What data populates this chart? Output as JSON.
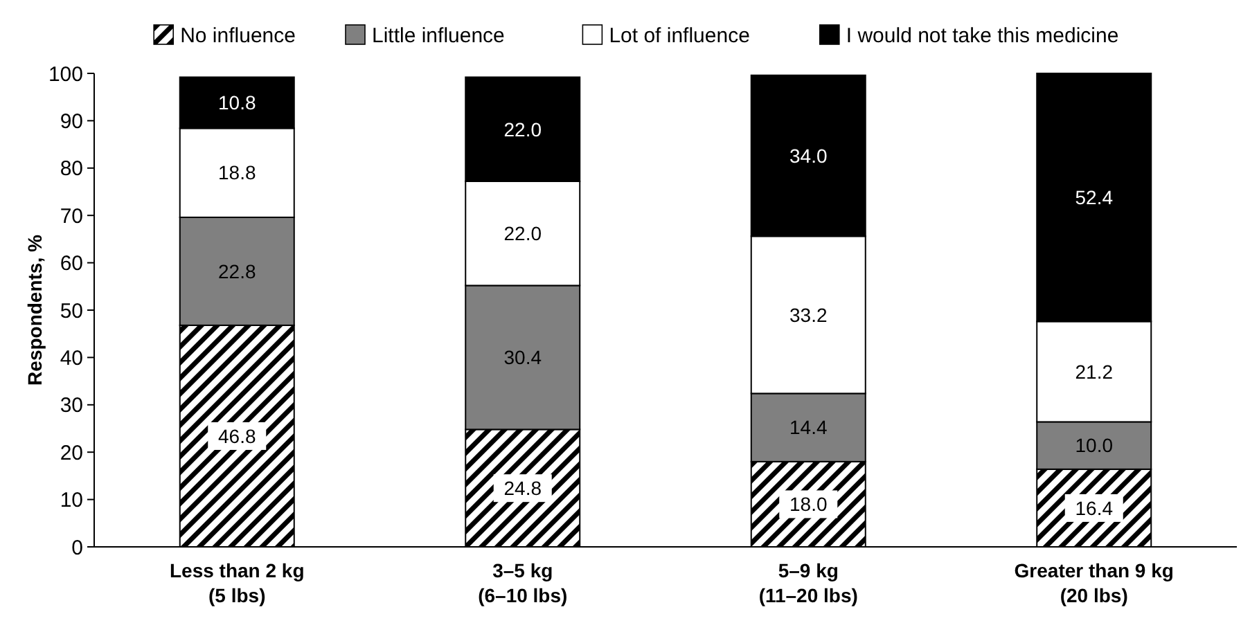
{
  "chart_data": {
    "type": "bar",
    "stacked": true,
    "ylabel": "Respondents, %",
    "categories": [
      "Less than 2 kg\n(5 lbs)",
      "3–5 kg\n(6–10 lbs)",
      "5–9 kg\n(11–20 lbs)",
      "Greater than 9 kg\n(20 lbs)"
    ],
    "series": [
      {
        "name": "No influence",
        "color": "#000000",
        "values": [
          46.8,
          24.8,
          18.0,
          16.4
        ],
        "value_labels": [
          "46.8",
          "24.8",
          "18.0",
          "16.4"
        ]
      },
      {
        "name": "Little influence",
        "color": "#808080",
        "values": [
          22.8,
          30.4,
          14.4,
          10.0
        ],
        "value_labels": [
          "22.8",
          "30.4",
          "14.4",
          "10.0"
        ]
      },
      {
        "name": "Lot of influence",
        "color": "#ffffff",
        "values": [
          18.8,
          22.0,
          33.2,
          21.2
        ],
        "value_labels": [
          "18.8",
          "22.0",
          "33.2",
          "21.2"
        ]
      },
      {
        "name": "I would not take this medicine",
        "color": "#000000",
        "values": [
          10.8,
          22.0,
          34.0,
          52.4
        ],
        "value_labels": [
          "10.8",
          "22.0",
          "34.0",
          "52.4"
        ]
      }
    ],
    "ylim": [
      0,
      100
    ],
    "yticks": [
      0,
      10,
      20,
      30,
      40,
      50,
      60,
      70,
      80,
      90,
      100
    ],
    "legend": "top",
    "grid": false
  }
}
